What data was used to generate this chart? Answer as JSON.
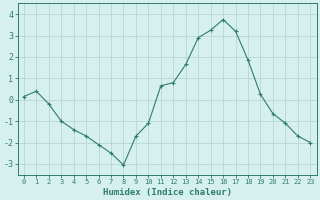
{
  "x": [
    0,
    1,
    2,
    3,
    4,
    5,
    6,
    7,
    8,
    9,
    10,
    11,
    12,
    13,
    14,
    15,
    16,
    17,
    18,
    19,
    20,
    21,
    22,
    23
  ],
  "y": [
    0.15,
    0.4,
    -0.2,
    -1.0,
    -1.4,
    -1.7,
    -2.1,
    -2.5,
    -3.05,
    -1.7,
    -1.1,
    0.65,
    0.8,
    1.65,
    2.9,
    3.25,
    3.75,
    3.2,
    1.85,
    0.25,
    -0.65,
    -1.1,
    -1.7,
    -2.0
  ],
  "line_color": "#2e7d6e",
  "marker": "P",
  "marker_size": 2.5,
  "bg_color": "#d6f0ee",
  "grid_color": "#b8d8d4",
  "xlabel": "Humidex (Indice chaleur)",
  "ylabel": "",
  "xlim": [
    -0.5,
    23.5
  ],
  "ylim": [
    -3.5,
    4.5
  ],
  "yticks": [
    -3,
    -2,
    -1,
    0,
    1,
    2,
    3,
    4
  ],
  "xticks": [
    0,
    1,
    2,
    3,
    4,
    5,
    6,
    7,
    8,
    9,
    10,
    11,
    12,
    13,
    14,
    15,
    16,
    17,
    18,
    19,
    20,
    21,
    22,
    23
  ],
  "tick_color": "#2e7d6e",
  "label_color": "#2e7d6e",
  "axis_color": "#2e7d6e",
  "xlabel_fontsize": 6.5,
  "xtick_fontsize": 5.0,
  "ytick_fontsize": 6.0
}
